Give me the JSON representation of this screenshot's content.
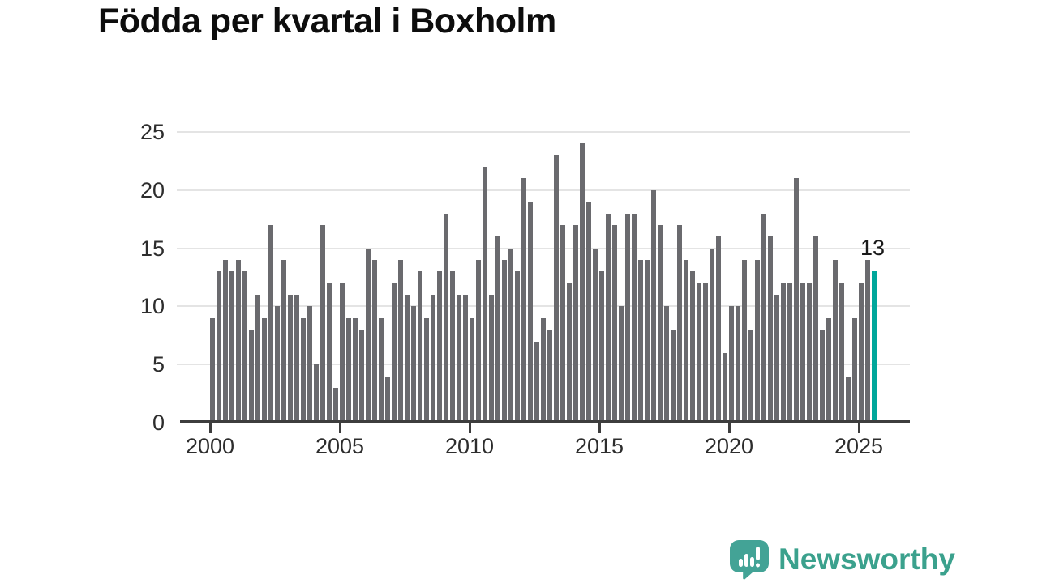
{
  "title": "Födda per kvartal i Boxholm",
  "chart_data": {
    "type": "bar",
    "title": "Födda per kvartal i Boxholm",
    "xlabel": "",
    "ylabel": "",
    "ylim": [
      0,
      25
    ],
    "grid": "horizontal",
    "y_ticks": [
      0,
      5,
      10,
      15,
      20,
      25
    ],
    "x_tick_labels": [
      "2000",
      "2005",
      "2010",
      "2015",
      "2020",
      "2025"
    ],
    "quarter_start": "2000 Q1",
    "quarter_end": "2025 Q3",
    "values": [
      9,
      13,
      14,
      13,
      14,
      13,
      8,
      11,
      9,
      17,
      10,
      14,
      11,
      11,
      9,
      10,
      5,
      17,
      12,
      3,
      12,
      9,
      9,
      8,
      15,
      14,
      9,
      4,
      12,
      14,
      11,
      10,
      13,
      9,
      11,
      13,
      18,
      13,
      11,
      11,
      9,
      14,
      22,
      11,
      16,
      14,
      15,
      13,
      21,
      19,
      7,
      9,
      8,
      23,
      17,
      12,
      17,
      24,
      19,
      15,
      13,
      18,
      17,
      10,
      18,
      18,
      14,
      14,
      20,
      17,
      10,
      8,
      17,
      14,
      13,
      12,
      12,
      15,
      16,
      6,
      10,
      10,
      14,
      8,
      14,
      18,
      16,
      11,
      12,
      12,
      21,
      12,
      12,
      16,
      8,
      9,
      14,
      12,
      4,
      9,
      12,
      14,
      13
    ],
    "highlight_last_bar": true,
    "last_value_label": "13",
    "bar_color": "#6a6a6e",
    "highlight_color": "#00a79b"
  },
  "annotation": {
    "label": "13"
  },
  "logo": {
    "text": "Newsworthy",
    "icon": "speech-bubble-bar-chart",
    "color": "#3ba18d"
  },
  "colors": {
    "background": "#ffffff",
    "title": "#0d0d0d",
    "axis_line": "#3d3d3d",
    "gridline": "#e4e4e4",
    "tick_label": "#2d2d2d",
    "bar_gray": "#6a6a6e",
    "bar_teal": "#00a79b",
    "logo_teal": "#3ba18d"
  }
}
